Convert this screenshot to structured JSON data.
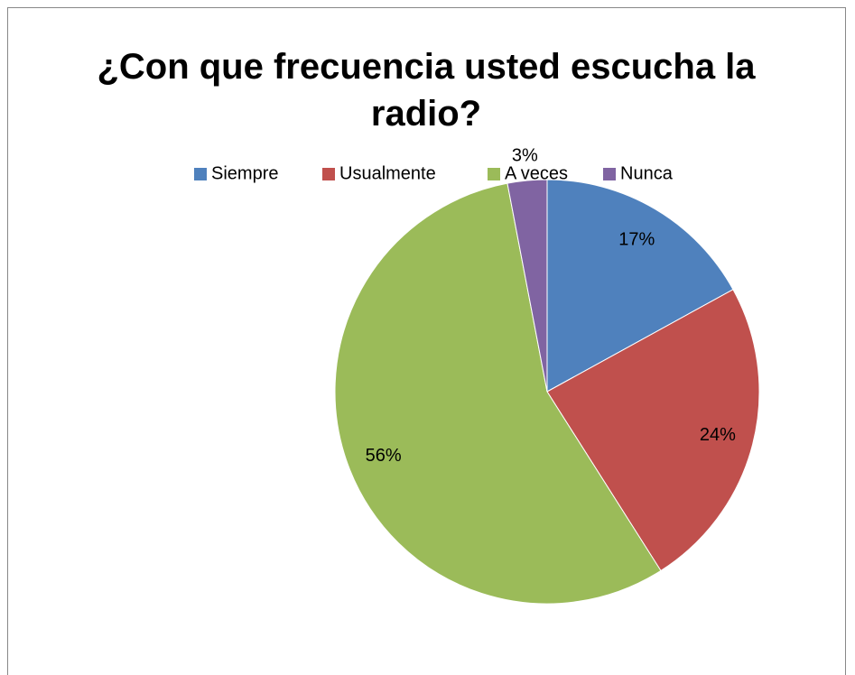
{
  "chart_data": {
    "type": "pie",
    "title": "¿Con que frecuencia usted escucha la radio?",
    "categories": [
      "Siempre",
      "Usualmente",
      "A veces",
      "Nunca"
    ],
    "values": [
      17,
      24,
      56,
      3
    ],
    "value_labels": [
      "17%",
      "24%",
      "56%",
      "3%"
    ],
    "colors": [
      "#4f81bd",
      "#c0504d",
      "#9bbb59",
      "#8064a2"
    ],
    "legend": "top"
  }
}
